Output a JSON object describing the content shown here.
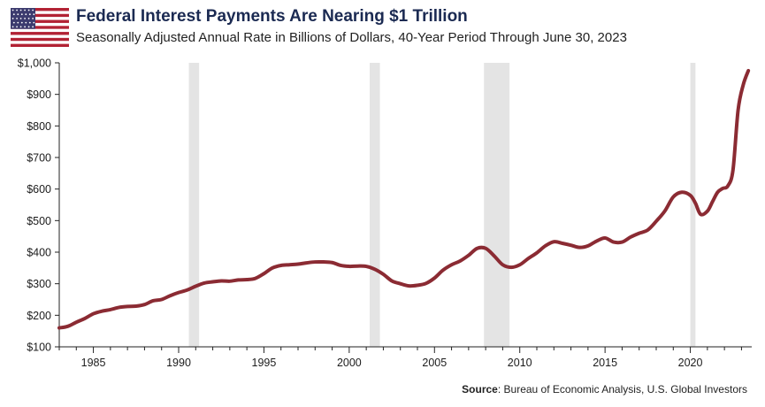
{
  "header": {
    "title": "Federal Interest Payments Are Nearing $1 Trillion",
    "subtitle": "Seasonally Adjusted Annual Rate in Billions of Dollars, 40-Year Period Through June 30, 2023",
    "flag_icon": "us-flag-icon"
  },
  "source": {
    "label": "Source",
    "text": ": Bureau of Economic Analysis, U.S. Global Investors"
  },
  "colors": {
    "line": "#8b2b33",
    "recession": "#e4e4e4",
    "title": "#1b2a52"
  },
  "chart_data": {
    "type": "line",
    "title": "Federal Interest Payments Are Nearing $1 Trillion",
    "subtitle": "Seasonally Adjusted Annual Rate in Billions of Dollars, 40-Year Period Through June 30, 2023",
    "xlabel": "",
    "ylabel": "",
    "xlim": [
      1983.0,
      2023.6
    ],
    "ylim": [
      100,
      1000
    ],
    "grid": false,
    "x_ticks": [
      1985,
      1990,
      1995,
      2000,
      2005,
      2010,
      2015,
      2020
    ],
    "x_tick_labels": [
      "1985",
      "1990",
      "1995",
      "2000",
      "2005",
      "2010",
      "2015",
      "2020"
    ],
    "y_ticks": [
      100,
      200,
      300,
      400,
      500,
      600,
      700,
      800,
      900,
      1000
    ],
    "y_tick_labels": [
      "$100",
      "$200",
      "$300",
      "$400",
      "$500",
      "$600",
      "$700",
      "$800",
      "$900",
      "$1,000"
    ],
    "recessions": [
      [
        1990.6,
        1991.2
      ],
      [
        2001.2,
        2001.8
      ],
      [
        2007.9,
        2009.4
      ],
      [
        2020.0,
        2020.3
      ]
    ],
    "series": [
      {
        "x": [
          1983.0,
          1983.5,
          1984.0,
          1984.5,
          1985.0,
          1985.5,
          1986.0,
          1986.5,
          1987.0,
          1987.5,
          1988.0,
          1988.5,
          1989.0,
          1989.5,
          1990.0,
          1990.5,
          1991.0,
          1991.5,
          1992.0,
          1992.5,
          1993.0,
          1993.5,
          1994.0,
          1994.5,
          1995.0,
          1995.5,
          1996.0,
          1996.5,
          1997.0,
          1997.5,
          1998.0,
          1998.5,
          1999.0,
          1999.5,
          2000.0,
          2000.5,
          2001.0,
          2001.5,
          2002.0,
          2002.5,
          2003.0,
          2003.5,
          2004.0,
          2004.5,
          2005.0,
          2005.5,
          2006.0,
          2006.5,
          2007.0,
          2007.5,
          2008.0,
          2008.5,
          2009.0,
          2009.5,
          2010.0,
          2010.5,
          2011.0,
          2011.5,
          2012.0,
          2012.5,
          2013.0,
          2013.5,
          2014.0,
          2014.5,
          2015.0,
          2015.5,
          2016.0,
          2016.5,
          2017.0,
          2017.5,
          2018.0,
          2018.5,
          2019.0,
          2019.5,
          2020.0,
          2020.3,
          2020.6,
          2021.0,
          2021.3,
          2021.6,
          2021.9,
          2022.2,
          2022.5,
          2022.8,
          2023.1,
          2023.4
        ],
        "values": [
          160,
          165,
          178,
          190,
          205,
          213,
          218,
          225,
          228,
          229,
          234,
          246,
          250,
          262,
          272,
          280,
          292,
          302,
          306,
          309,
          308,
          312,
          313,
          317,
          332,
          350,
          358,
          360,
          362,
          366,
          369,
          369,
          367,
          358,
          355,
          356,
          355,
          346,
          330,
          309,
          300,
          293,
          295,
          301,
          318,
          343,
          360,
          372,
          390,
          412,
          412,
          388,
          360,
          352,
          360,
          380,
          398,
          420,
          433,
          428,
          422,
          415,
          420,
          435,
          445,
          432,
          432,
          448,
          460,
          470,
          498,
          530,
          575,
          590,
          580,
          555,
          520,
          530,
          560,
          590,
          602,
          610,
          660,
          850,
          930,
          975
        ]
      }
    ]
  }
}
